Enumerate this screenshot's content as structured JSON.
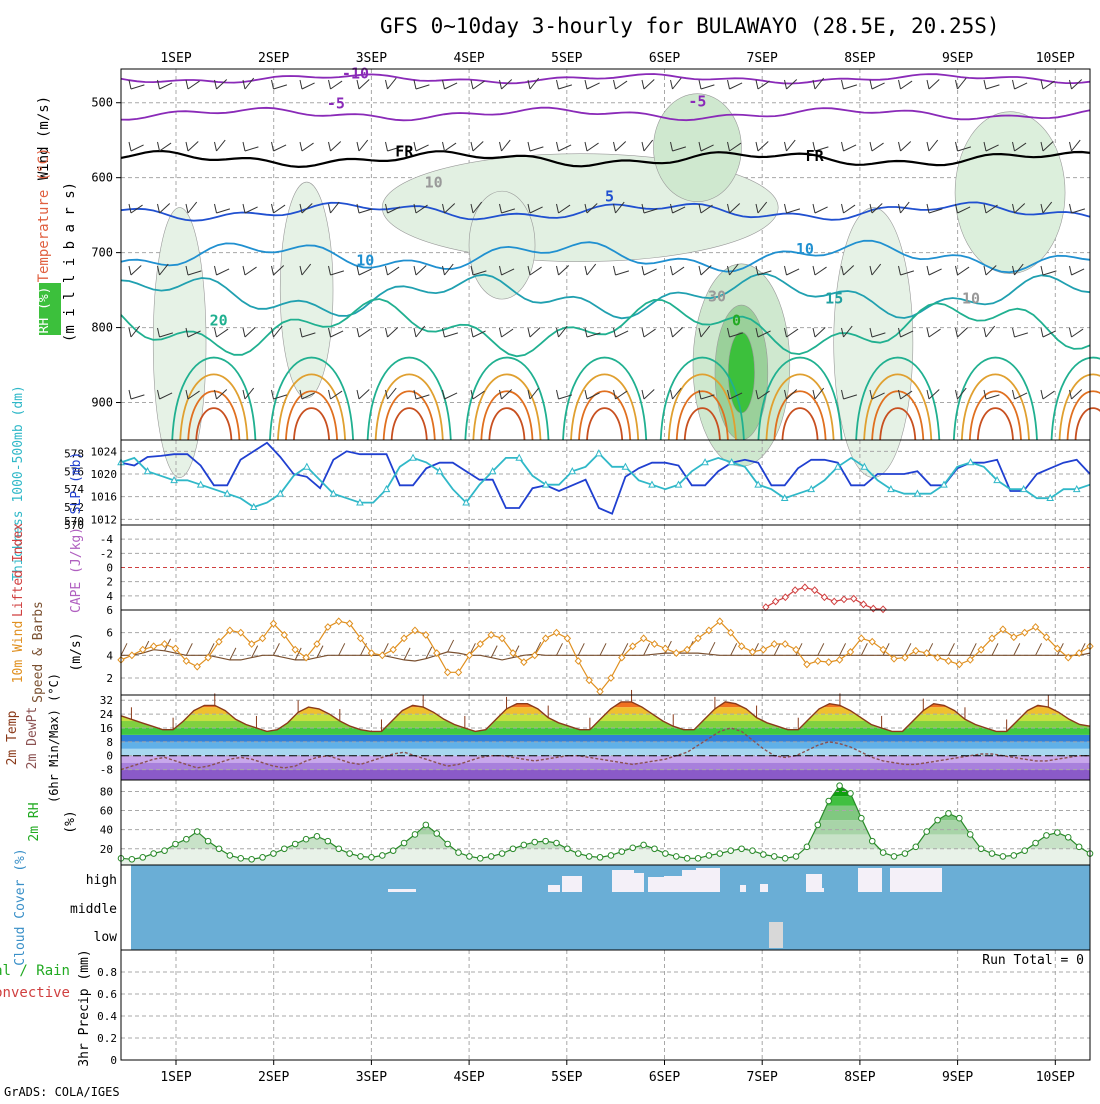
{
  "title": "GFS 0~10day 3-hourly for BULAWAYO (28.5E, 20.25S)",
  "footer": "GrADS: COLA/IGES",
  "date_ticks": [
    "1SEP",
    "2SEP",
    "3SEP",
    "4SEP",
    "5SEP",
    "6SEP",
    "7SEP",
    "8SEP",
    "9SEP",
    "10SEP"
  ],
  "colors": {
    "frame": "#000000",
    "grid": "#a8a8a8",
    "cloud": "#6aaed6",
    "temp": "#e07020",
    "rh": "#22aa22"
  },
  "chart_data": [
    {
      "type": "area",
      "name": "upper_air",
      "ylabel_parts": [
        {
          "text": "RH (%)",
          "color": "#22aa22"
        },
        {
          "text": "Temperature (°C)",
          "color": "#e06040"
        },
        {
          "text": "Wind (m/s)",
          "color": "#000000"
        },
        {
          "text": "(m i l l i b a r s)",
          "color": "#000000"
        }
      ],
      "y_ticks": [
        500,
        600,
        700,
        800,
        900
      ],
      "ylim": [
        455,
        950
      ],
      "x": [
        "1SEP",
        "2SEP",
        "3SEP",
        "4SEP",
        "5SEP",
        "6SEP",
        "7SEP",
        "8SEP",
        "9SEP",
        "10SEP"
      ],
      "isotherm_labels": [
        {
          "text": "-10",
          "x": 2.0,
          "p": 468,
          "color": "#8a2ab8"
        },
        {
          "text": "-5",
          "x": 1.8,
          "p": 508,
          "color": "#8a2ab8"
        },
        {
          "text": "-5",
          "x": 5.5,
          "p": 505,
          "color": "#8a2ab8"
        },
        {
          "text": "FR",
          "x": 2.5,
          "p": 572,
          "color": "#000000"
        },
        {
          "text": "FR",
          "x": 6.7,
          "p": 578,
          "color": "#000000"
        },
        {
          "text": "5",
          "x": 4.6,
          "p": 632,
          "color": "#2050d0"
        },
        {
          "text": "10",
          "x": 2.1,
          "p": 717,
          "color": "#2090d0"
        },
        {
          "text": "10",
          "x": 6.6,
          "p": 702,
          "color": "#2090d0"
        },
        {
          "text": "15",
          "x": 6.9,
          "p": 768,
          "color": "#20a0a0"
        },
        {
          "text": "20",
          "x": 0.6,
          "p": 797,
          "color": "#20b090"
        },
        {
          "text": "0",
          "x": 5.9,
          "p": 797,
          "color": "#22aa22"
        },
        {
          "text": "10",
          "x": 2.8,
          "p": 613,
          "color": "#999999"
        },
        {
          "text": "30",
          "x": 5.7,
          "p": 765,
          "color": "#999999"
        },
        {
          "text": "10",
          "x": 8.3,
          "p": 768,
          "color": "#999999"
        }
      ]
    },
    {
      "type": "line",
      "name": "slp_thickness",
      "ylabel_left": "Thickness 1000-500mb (dm)",
      "ylabel_right": "SLP (mb)",
      "left_ticks": [
        570,
        572,
        574,
        576,
        578
      ],
      "right_ticks": [
        1012,
        1016,
        1020,
        1024
      ],
      "left_ylim": [
        570,
        579.5
      ],
      "right_ylim": [
        1011,
        1026
      ],
      "series": [
        {
          "name": "SLP",
          "color": "#2040d0",
          "axis": "right",
          "values": [
            1022.0,
            1021.5,
            1023.0,
            1023.2,
            1023.5,
            1023.5,
            1021.5,
            1018.0,
            1018.0,
            1022.5,
            1024.0,
            1025.5,
            1023.0,
            1020.0,
            1019.5,
            1017.5,
            1022.5,
            1024.0,
            1023.5,
            1023.5,
            1023.5,
            1018.0,
            1018.0,
            1021.0,
            1022.0,
            1022.0,
            1020.5,
            1019.0,
            1019.0,
            1014.0,
            1014.0,
            1017.5,
            1018.0,
            1017.0,
            1018.0,
            1019.0,
            1014.0,
            1013.0,
            1019.5,
            1021.0,
            1022.0,
            1022.0,
            1021.5,
            1018.0,
            1018.0,
            1020.5,
            1022.0,
            1022.5,
            1022.0,
            1018.0,
            1018.0,
            1021.0,
            1022.5,
            1022.5,
            1022.0,
            1018.0,
            1018.0,
            1020.0,
            1020.0,
            1020.0,
            1020.5,
            1018.0,
            1018.0,
            1021.0,
            1022.0,
            1022.0,
            1022.5,
            1017.0,
            1017.0,
            1020.0,
            1021.0,
            1022.0,
            1022.5,
            1020.0
          ]
        },
        {
          "name": "Thickness",
          "color": "#30b8c8",
          "axis": "left",
          "values": [
            577.0,
            577.5,
            576.0,
            575.5,
            575.0,
            575.0,
            574.5,
            574.0,
            573.5,
            573.0,
            572.0,
            572.5,
            573.5,
            575.5,
            576.5,
            575.0,
            573.5,
            573.0,
            572.5,
            572.5,
            574.0,
            576.5,
            577.5,
            577.0,
            576.0,
            574.0,
            572.5,
            574.5,
            576.0,
            577.5,
            577.5,
            575.5,
            574.5,
            574.5,
            576.0,
            576.5,
            578.0,
            576.5,
            576.5,
            575.0,
            574.5,
            574.0,
            574.5,
            576.0,
            577.0,
            577.5,
            577.0,
            576.5,
            574.5,
            574.0,
            573.0,
            573.5,
            574.0,
            575.0,
            576.5,
            577.5,
            576.5,
            575.0,
            574.0,
            573.5,
            573.5,
            573.5,
            574.5,
            576.5,
            577.0,
            576.5,
            575.0,
            574.0,
            574.0,
            573.0,
            573.0,
            574.0,
            574.0,
            574.5
          ]
        }
      ]
    },
    {
      "type": "line",
      "name": "lifted_index_cape",
      "ylabel_left": "Lifted Index",
      "ylabel_right": "CAPE (J/kg)",
      "y_ticks": [
        -4,
        -2,
        0,
        2,
        4,
        6
      ],
      "ylim": [
        -6,
        6
      ],
      "series": [
        {
          "name": "CAPE",
          "color": "#d04040",
          "x": [
            6.2,
            6.3,
            6.4,
            6.5,
            6.6,
            6.7,
            6.8,
            6.9,
            7.0,
            7.1,
            7.2,
            7.3,
            7.4
          ],
          "values": [
            5.6,
            4.8,
            4.2,
            3.2,
            2.8,
            3.2,
            4.2,
            4.8,
            4.5,
            4.4,
            5.2,
            5.8,
            5.9
          ]
        }
      ]
    },
    {
      "type": "line",
      "name": "wind10m",
      "ylabel_left": "10m Wind",
      "ylabel_mid": "Speed & Barbs",
      "ylabel_right": "(m/s)",
      "y_ticks": [
        2,
        4,
        6
      ],
      "ylim": [
        0.5,
        8
      ],
      "series": [
        {
          "name": "Speed",
          "color": "#e09020",
          "values": [
            3.6,
            4.0,
            4.5,
            4.8,
            5.0,
            4.6,
            3.5,
            3.0,
            3.8,
            5.2,
            6.2,
            6.0,
            5.0,
            5.5,
            6.8,
            5.8,
            4.5,
            3.8,
            5.0,
            6.5,
            7.0,
            6.8,
            5.5,
            4.2,
            4.0,
            4.5,
            5.5,
            6.2,
            5.8,
            4.2,
            2.5,
            2.5,
            4.0,
            5.0,
            5.8,
            5.5,
            4.2,
            3.4,
            4.0,
            5.5,
            6.0,
            5.5,
            3.5,
            1.8,
            0.8,
            2.0,
            3.8,
            4.8,
            5.5,
            5.0,
            4.6,
            4.2,
            4.5,
            5.5,
            6.2,
            7.0,
            6.0,
            4.8,
            4.3,
            4.5,
            5.0,
            5.0,
            4.5,
            3.2,
            3.5,
            3.4,
            3.6,
            4.3,
            5.5,
            5.2,
            4.5,
            3.7,
            3.8,
            4.4,
            4.2,
            3.8,
            3.5,
            3.2,
            3.6,
            4.5,
            5.5,
            6.3,
            5.6,
            6.0,
            6.5,
            5.6,
            4.6,
            3.8,
            4.2,
            4.8
          ]
        },
        {
          "name": "Barb",
          "color": "#7a5030",
          "values": [
            4.0,
            4.0,
            4.2,
            4.5,
            4.4,
            4.2,
            4.0,
            4.0,
            4.0,
            3.8,
            3.6,
            3.6,
            3.8,
            4.0,
            4.0,
            3.8,
            3.6,
            3.6,
            3.8,
            4.0,
            4.0,
            4.0,
            4.0,
            4.0,
            4.0,
            3.8,
            3.6,
            3.5,
            3.7,
            4.0,
            4.3,
            4.2,
            4.0,
            4.0,
            3.8,
            3.6,
            3.8,
            4.0,
            4.1,
            4.0,
            4.0,
            4.0,
            4.0,
            4.0,
            4.0,
            4.0,
            4.0,
            4.0,
            4.0,
            4.1,
            4.2,
            4.2,
            4.2,
            4.2,
            4.1,
            4.0,
            4.0,
            4.0,
            4.0,
            4.0,
            4.0,
            4.0,
            4.0,
            4.0,
            4.0,
            4.0,
            4.0,
            4.0,
            4.0,
            4.0,
            4.0,
            4.0,
            4.0,
            4.0,
            4.0,
            4.0,
            4.0,
            4.0,
            4.0,
            4.0,
            4.0,
            4.0,
            4.0,
            4.0,
            4.0,
            4.0,
            4.0,
            4.0,
            4.0,
            4.2
          ]
        }
      ]
    },
    {
      "type": "area",
      "name": "temp2m",
      "ylabel_left": "2m Temp",
      "ylabel_mid": "2m DewPt",
      "ylabel_right": "(6hr Min/Max) (°C)",
      "y_ticks": [
        -8,
        0,
        8,
        16,
        24,
        32
      ],
      "ylim": [
        -14,
        35
      ],
      "series": [
        {
          "name": "Temp",
          "color": "#8a3a1a",
          "values": [
            23,
            21,
            19,
            17,
            15,
            15,
            20,
            26,
            29,
            29,
            26,
            21,
            18,
            16,
            14,
            15,
            19,
            25,
            28,
            27,
            24,
            20,
            17,
            15,
            14,
            14,
            20,
            26,
            29,
            28,
            25,
            21,
            18,
            16,
            14,
            15,
            21,
            27,
            30,
            30,
            27,
            22,
            19,
            17,
            15,
            15,
            21,
            27,
            31,
            31,
            28,
            24,
            20,
            17,
            15,
            15,
            21,
            27,
            31,
            30,
            27,
            22,
            19,
            17,
            15,
            15,
            21,
            27,
            30,
            29,
            26,
            22,
            18,
            16,
            14,
            14,
            20,
            26,
            30,
            29,
            26,
            21,
            18,
            16,
            14,
            14,
            20,
            26,
            29,
            28,
            25,
            21,
            18,
            17
          ]
        },
        {
          "name": "DewPt",
          "color": "#8a5050",
          "values": [
            -8,
            -6,
            -4,
            -2,
            -1,
            -3,
            -5,
            -7,
            -6,
            -4,
            -2,
            -1,
            -2,
            -4,
            -6,
            -7,
            -6,
            -3,
            -1,
            0,
            -2,
            -4,
            -5,
            -3,
            -1,
            1,
            2,
            0,
            -2,
            -4,
            -6,
            -5,
            -3,
            -1,
            0,
            0,
            -1,
            -2,
            -3,
            -2,
            -1,
            0,
            0,
            -1,
            -2,
            -3,
            -4,
            -5,
            -4,
            -3,
            -2,
            0,
            2,
            6,
            10,
            14,
            16,
            14,
            9,
            4,
            0,
            -1,
            0,
            3,
            6,
            8,
            7,
            5,
            2,
            -1,
            -3,
            -4,
            -5,
            -5,
            -4,
            -3,
            -2,
            -1,
            0,
            1,
            1,
            0,
            -1,
            -2,
            -3,
            -3,
            -2,
            -1,
            0,
            0
          ]
        }
      ]
    },
    {
      "type": "area",
      "name": "rh2m",
      "ylabel_left": "2m RH",
      "ylabel_right": "(%)",
      "y_ticks": [
        20,
        40,
        60,
        80
      ],
      "ylim": [
        3,
        92
      ],
      "series": [
        {
          "name": "RH",
          "color": "#2a8a2a",
          "values": [
            10,
            9,
            11,
            15,
            18,
            25,
            30,
            38,
            28,
            20,
            13,
            10,
            9,
            11,
            15,
            20,
            25,
            30,
            33,
            28,
            20,
            15,
            12,
            11,
            13,
            18,
            26,
            35,
            45,
            36,
            25,
            16,
            12,
            10,
            12,
            15,
            20,
            24,
            27,
            28,
            26,
            20,
            15,
            12,
            11,
            13,
            17,
            21,
            24,
            20,
            15,
            12,
            10,
            10,
            13,
            15,
            18,
            20,
            18,
            14,
            12,
            10,
            12,
            22,
            45,
            70,
            86,
            78,
            52,
            28,
            16,
            12,
            15,
            22,
            38,
            50,
            57,
            52,
            35,
            20,
            15,
            12,
            13,
            18,
            26,
            34,
            37,
            32,
            22,
            15
          ]
        }
      ]
    },
    {
      "type": "area",
      "name": "cloud_cover",
      "ylabel": "Cloud Cover (%)",
      "y_ticks": [
        "high",
        "middle",
        "low"
      ]
    },
    {
      "type": "bar",
      "name": "precip",
      "ylabel_left": "Total / Rain",
      "ylabel_mid": "Convective",
      "ylabel_right": "3hr Precip (mm)",
      "y_ticks": [
        0,
        0.2,
        0.4,
        0.6,
        0.8
      ],
      "ylim": [
        0,
        1
      ],
      "run_total": "Run Total = 0",
      "values": []
    }
  ]
}
